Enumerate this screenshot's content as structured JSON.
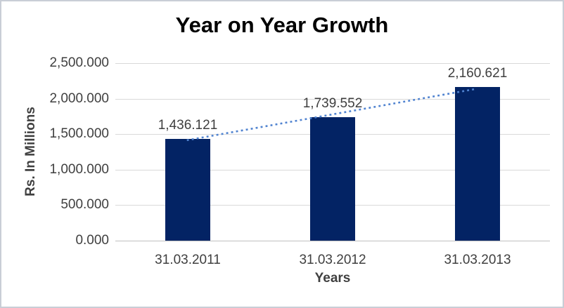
{
  "chart_data": {
    "type": "bar",
    "title": "Year on Year Growth",
    "categories": [
      "31.03.2011",
      "31.03.2012",
      "31.03.2013"
    ],
    "values": [
      1436.121,
      1739.552,
      2160.621
    ],
    "data_labels": [
      "1,436.121",
      "1,739.552",
      "2,160.621"
    ],
    "xlabel": "Years",
    "ylabel": "Rs. In Millions",
    "ylim": [
      0,
      2500
    ],
    "yticks": [
      0,
      500,
      1000,
      1500,
      2000,
      2500
    ],
    "ytick_labels": [
      "0.000",
      "500.000",
      "1,000.000",
      "1,500.000",
      "2,000.000",
      "2,500.000"
    ],
    "grid": true,
    "legend": "none",
    "trendline": {
      "type": "linear",
      "style": "dotted",
      "span": "first-to-last-category"
    },
    "colors": {
      "bar": "#032364",
      "trendline": "#5083d0",
      "gridline": "#d9d9d9",
      "axis_line": "#bfbfbf",
      "text": "#3f3f3f",
      "title_text": "#000000",
      "background": "#ffffff",
      "frame_border": "#c9ced6"
    }
  }
}
